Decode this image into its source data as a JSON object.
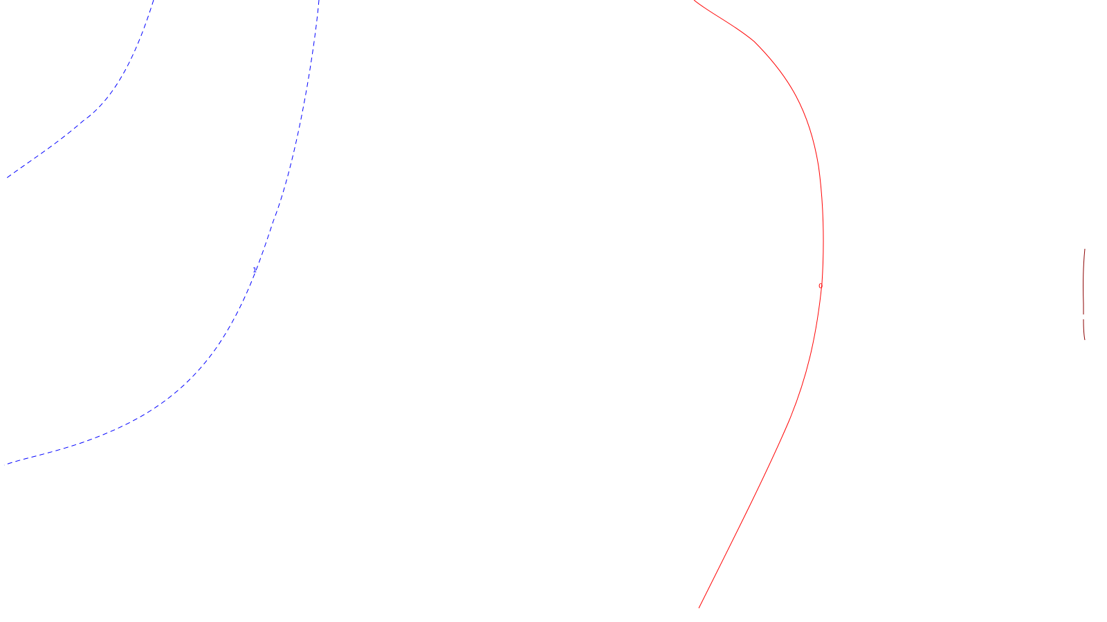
{
  "chart_data": {
    "type": "contour",
    "title": "",
    "xlabel": "",
    "ylabel": "",
    "grid": false,
    "legend": "none",
    "contours": [
      {
        "level": "1",
        "color": "#0000ff",
        "line_style": "dashed",
        "label": "1"
      },
      {
        "level": "0",
        "color": "#ff0000",
        "line_style": "solid",
        "label": "0"
      },
      {
        "level": "",
        "color": "#8b0000",
        "line_style": "dashed",
        "label": ""
      }
    ]
  }
}
